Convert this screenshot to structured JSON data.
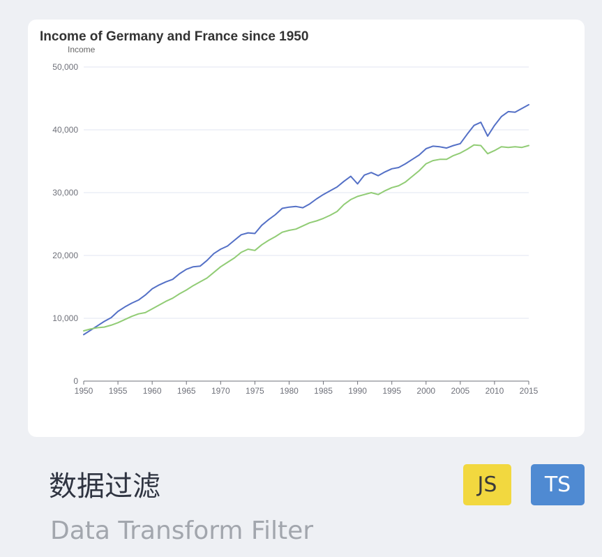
{
  "card": {
    "title": "数据过滤",
    "subtitle": "Data Transform Filter",
    "badges": [
      {
        "label": "JS",
        "color": "#f2d83f"
      },
      {
        "label": "TS",
        "color": "#4f8ad2"
      }
    ]
  },
  "chart_data": {
    "type": "line",
    "title": "Income of Germany and France since 1950",
    "ylabel": "Income",
    "xlabel": "",
    "ylim": [
      0,
      50000
    ],
    "xlim": [
      1950,
      2015
    ],
    "yticks": [
      0,
      10000,
      20000,
      30000,
      40000,
      50000
    ],
    "ytick_labels": [
      "0",
      "10,000",
      "20,000",
      "30,000",
      "40,000",
      "50,000"
    ],
    "xticks": [
      1950,
      1955,
      1960,
      1965,
      1970,
      1975,
      1980,
      1985,
      1990,
      1995,
      2000,
      2005,
      2010,
      2015
    ],
    "grid": true,
    "legend": "none",
    "x": [
      1950,
      1951,
      1952,
      1953,
      1954,
      1955,
      1956,
      1957,
      1958,
      1959,
      1960,
      1961,
      1962,
      1963,
      1964,
      1965,
      1966,
      1967,
      1968,
      1969,
      1970,
      1971,
      1972,
      1973,
      1974,
      1975,
      1976,
      1977,
      1978,
      1979,
      1980,
      1981,
      1982,
      1983,
      1984,
      1985,
      1986,
      1987,
      1988,
      1989,
      1990,
      1991,
      1992,
      1993,
      1994,
      1995,
      1996,
      1997,
      1998,
      1999,
      2000,
      2001,
      2002,
      2003,
      2004,
      2005,
      2006,
      2007,
      2008,
      2009,
      2010,
      2011,
      2012,
      2013,
      2014,
      2015
    ],
    "series": [
      {
        "color": "#5470c6",
        "values": [
          7400,
          8100,
          8800,
          9500,
          10100,
          11100,
          11800,
          12400,
          12900,
          13700,
          14700,
          15300,
          15800,
          16200,
          17100,
          17800,
          18200,
          18300,
          19200,
          20300,
          21000,
          21500,
          22400,
          23300,
          23600,
          23500,
          24800,
          25700,
          26500,
          27500,
          27700,
          27800,
          27600,
          28200,
          29000,
          29700,
          30300,
          30900,
          31800,
          32600,
          31400,
          32800,
          33200,
          32700,
          33300,
          33800,
          34000,
          34600,
          35300,
          36000,
          37000,
          37400,
          37300,
          37100,
          37500,
          37800,
          39300,
          40700,
          41200,
          39000,
          40700,
          42100,
          42900,
          42800,
          43400,
          44000
        ]
      },
      {
        "color": "#91cc75",
        "values": [
          8000,
          8300,
          8500,
          8600,
          8900,
          9300,
          9800,
          10300,
          10700,
          10900,
          11500,
          12100,
          12700,
          13200,
          13900,
          14500,
          15200,
          15800,
          16400,
          17300,
          18200,
          18900,
          19600,
          20500,
          21000,
          20800,
          21700,
          22400,
          23000,
          23700,
          24000,
          24200,
          24700,
          25200,
          25500,
          25900,
          26400,
          27000,
          28100,
          28900,
          29400,
          29700,
          30000,
          29700,
          30300,
          30800,
          31100,
          31700,
          32600,
          33500,
          34600,
          35100,
          35300,
          35300,
          35900,
          36300,
          36900,
          37600,
          37500,
          36200,
          36700,
          37300,
          37200,
          37300,
          37200,
          37500
        ]
      }
    ]
  }
}
